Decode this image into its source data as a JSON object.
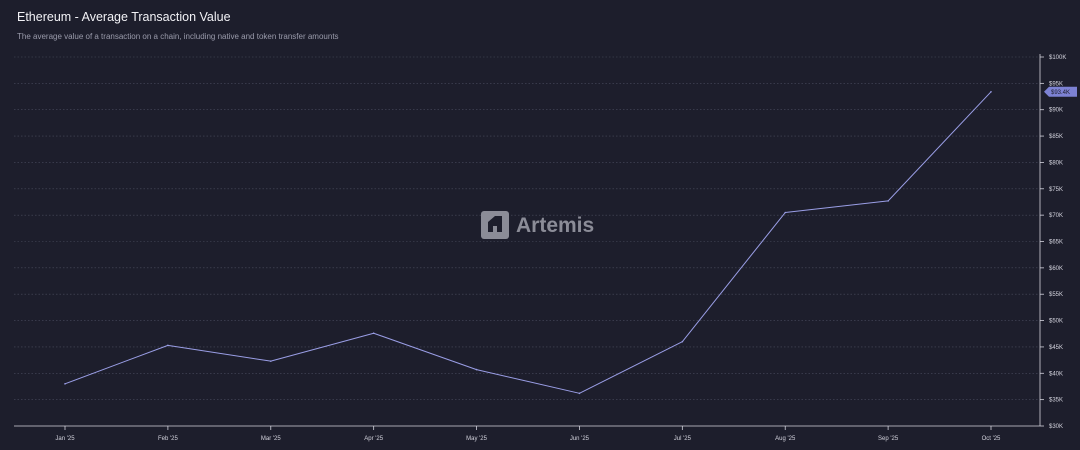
{
  "header": {
    "title": "Ethereum - Average Transaction Value",
    "subtitle": "The average value of a transaction on a chain, including native and token transfer amounts"
  },
  "watermark": {
    "text": "Artemis",
    "icon": "artemis-logo-icon"
  },
  "colors": {
    "background": "#1d1e2c",
    "line": "#9a9ee6",
    "grid": "#4a4c5e",
    "label_bg": "#7d82d4"
  },
  "chart_data": {
    "type": "line",
    "title": "Ethereum - Average Transaction Value",
    "xlabel": "",
    "ylabel": "",
    "categories": [
      "Jan '25",
      "Feb '25",
      "Mar '25",
      "Apr '25",
      "May '25",
      "Jun '25",
      "Jul '25",
      "Aug '25",
      "Sep '25",
      "Oct '25"
    ],
    "series": [
      {
        "values": [
          38000,
          45300,
          42300,
          47600,
          40700,
          36200,
          46000,
          70500,
          72700,
          93400
        ]
      }
    ],
    "ylim": [
      30000,
      100000
    ],
    "yticks": [
      {
        "value": 30000,
        "label": "$30K"
      },
      {
        "value": 35000,
        "label": "$35K"
      },
      {
        "value": 40000,
        "label": "$40K"
      },
      {
        "value": 45000,
        "label": "$45K"
      },
      {
        "value": 50000,
        "label": "$50K"
      },
      {
        "value": 55000,
        "label": "$55K"
      },
      {
        "value": 60000,
        "label": "$60K"
      },
      {
        "value": 65000,
        "label": "$65K"
      },
      {
        "value": 70000,
        "label": "$70K"
      },
      {
        "value": 75000,
        "label": "$75K"
      },
      {
        "value": 80000,
        "label": "$80K"
      },
      {
        "value": 85000,
        "label": "$85K"
      },
      {
        "value": 90000,
        "label": "$90K"
      },
      {
        "value": 95000,
        "label": "$95K"
      },
      {
        "value": 100000,
        "label": "$100K"
      }
    ],
    "last_value_label": "$93.4K",
    "grid": true,
    "y_axis_position": "right",
    "legend": "none"
  }
}
